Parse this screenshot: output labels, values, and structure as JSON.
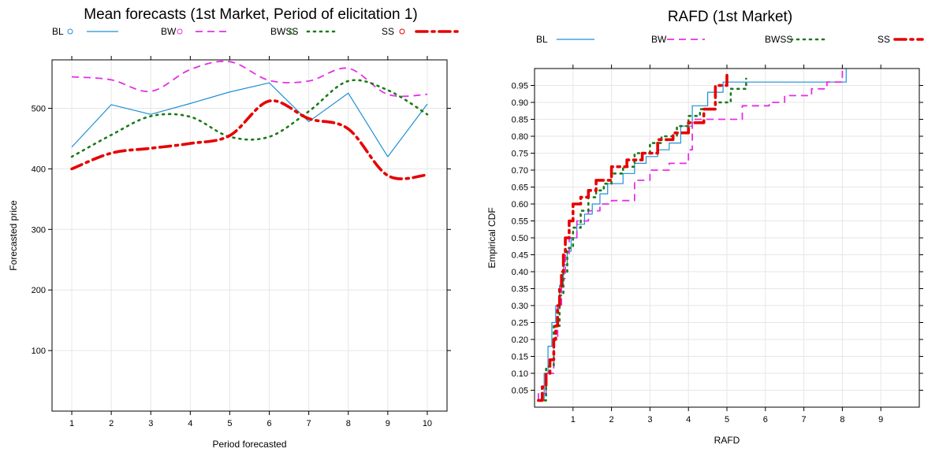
{
  "chart_data": [
    {
      "type": "line",
      "title": "Mean forecasts (1st Market, Period of elicitation 1)",
      "xlabel": "Period forecasted",
      "ylabel": "Forecasted price",
      "xlim": [
        0.5,
        10.5
      ],
      "ylim": [
        0,
        580
      ],
      "x_ticks": [
        "1",
        "2",
        "3",
        "4",
        "5",
        "6",
        "7",
        "8",
        "9",
        "10"
      ],
      "y_ticks": [
        "100",
        "200",
        "300",
        "400",
        "500"
      ],
      "grid": true,
      "legend_position": "top",
      "series": [
        {
          "name": "BL",
          "color": "#1f8fd6",
          "style": "solid",
          "x": [
            1,
            2,
            3,
            4,
            5,
            6,
            7,
            8,
            9,
            10
          ],
          "y": [
            436,
            506,
            490,
            508,
            527,
            542,
            478,
            525,
            420,
            507
          ]
        },
        {
          "name": "BW",
          "color": "#e62ee6",
          "style": "dashed",
          "x": [
            1,
            2,
            3,
            4,
            5,
            6,
            7,
            8,
            9,
            10
          ],
          "y": [
            552,
            547,
            528,
            564,
            577,
            546,
            545,
            566,
            523,
            523
          ]
        },
        {
          "name": "BWSS",
          "color": "#1a7a1a",
          "style": "dotted",
          "x": [
            1,
            2,
            3,
            4,
            5,
            6,
            7,
            8,
            9,
            10
          ],
          "y": [
            420,
            456,
            487,
            486,
            453,
            453,
            495,
            545,
            530,
            490
          ]
        },
        {
          "name": "SS",
          "color": "#e60000",
          "style": "dashdot",
          "x": [
            1,
            2,
            3,
            4,
            5,
            6,
            7,
            8,
            9,
            10
          ],
          "y": [
            400,
            426,
            434,
            442,
            455,
            512,
            483,
            466,
            389,
            390
          ]
        }
      ]
    },
    {
      "type": "line",
      "title": "RAFD (1st Market)",
      "xlabel": "RAFD",
      "ylabel": "Empirical CDF",
      "xlim": [
        0,
        10
      ],
      "ylim": [
        0,
        1
      ],
      "x_ticks": [
        "1",
        "2",
        "3",
        "4",
        "5",
        "6",
        "7",
        "8",
        "9"
      ],
      "y_ticks": [
        "0.05",
        "0.10",
        "0.15",
        "0.20",
        "0.25",
        "0.30",
        "0.35",
        "0.40",
        "0.45",
        "0.50",
        "0.55",
        "0.60",
        "0.65",
        "0.70",
        "0.75",
        "0.80",
        "0.85",
        "0.90",
        "0.95"
      ],
      "grid": true,
      "legend_position": "top",
      "step": true,
      "series": [
        {
          "name": "BL",
          "color": "#1f8fd6",
          "style": "solid",
          "x": [
            0.1,
            0.25,
            0.35,
            0.45,
            0.55,
            0.65,
            0.75,
            0.85,
            0.95,
            1.1,
            1.3,
            1.5,
            1.7,
            1.9,
            2.3,
            2.6,
            2.9,
            3.2,
            3.5,
            3.8,
            4.1,
            4.5,
            4.9,
            8.1
          ],
          "y": [
            0.02,
            0.1,
            0.18,
            0.25,
            0.3,
            0.36,
            0.42,
            0.46,
            0.5,
            0.54,
            0.57,
            0.6,
            0.63,
            0.66,
            0.69,
            0.72,
            0.74,
            0.76,
            0.78,
            0.83,
            0.89,
            0.93,
            0.96,
            1.0
          ]
        },
        {
          "name": "BW",
          "color": "#e62ee6",
          "style": "dashed",
          "x": [
            0.1,
            0.3,
            0.5,
            0.6,
            0.7,
            0.8,
            0.9,
            1.1,
            1.4,
            1.7,
            2.0,
            2.6,
            3.0,
            3.5,
            4.0,
            4.1,
            5.4,
            6.1,
            6.5,
            7.2,
            7.6,
            8.0
          ],
          "y": [
            0.04,
            0.1,
            0.2,
            0.3,
            0.38,
            0.45,
            0.5,
            0.55,
            0.58,
            0.6,
            0.61,
            0.67,
            0.7,
            0.72,
            0.76,
            0.85,
            0.89,
            0.9,
            0.92,
            0.94,
            0.96,
            1.0
          ]
        },
        {
          "name": "BWSS",
          "color": "#1a7a1a",
          "style": "dotted",
          "x": [
            0.1,
            0.3,
            0.5,
            0.65,
            0.75,
            0.85,
            1.0,
            1.2,
            1.4,
            1.6,
            1.8,
            2.0,
            2.3,
            2.6,
            3.0,
            3.3,
            3.7,
            4.0,
            4.3,
            4.7,
            5.1,
            5.5
          ],
          "y": [
            0.02,
            0.12,
            0.24,
            0.33,
            0.4,
            0.47,
            0.53,
            0.58,
            0.62,
            0.64,
            0.66,
            0.69,
            0.71,
            0.75,
            0.78,
            0.8,
            0.83,
            0.86,
            0.88,
            0.9,
            0.94,
            0.97
          ]
        },
        {
          "name": "SS",
          "color": "#e60000",
          "style": "dashdot",
          "x": [
            0.1,
            0.2,
            0.3,
            0.4,
            0.5,
            0.55,
            0.6,
            0.65,
            0.7,
            0.75,
            0.8,
            0.9,
            1.0,
            1.2,
            1.4,
            1.6,
            2.0,
            2.4,
            2.8,
            3.2,
            3.6,
            4.0,
            4.4,
            4.7,
            5.0
          ],
          "y": [
            0.02,
            0.06,
            0.1,
            0.14,
            0.2,
            0.24,
            0.3,
            0.35,
            0.4,
            0.45,
            0.5,
            0.55,
            0.6,
            0.62,
            0.64,
            0.67,
            0.71,
            0.73,
            0.75,
            0.79,
            0.81,
            0.84,
            0.88,
            0.95,
            0.98
          ]
        }
      ]
    }
  ]
}
